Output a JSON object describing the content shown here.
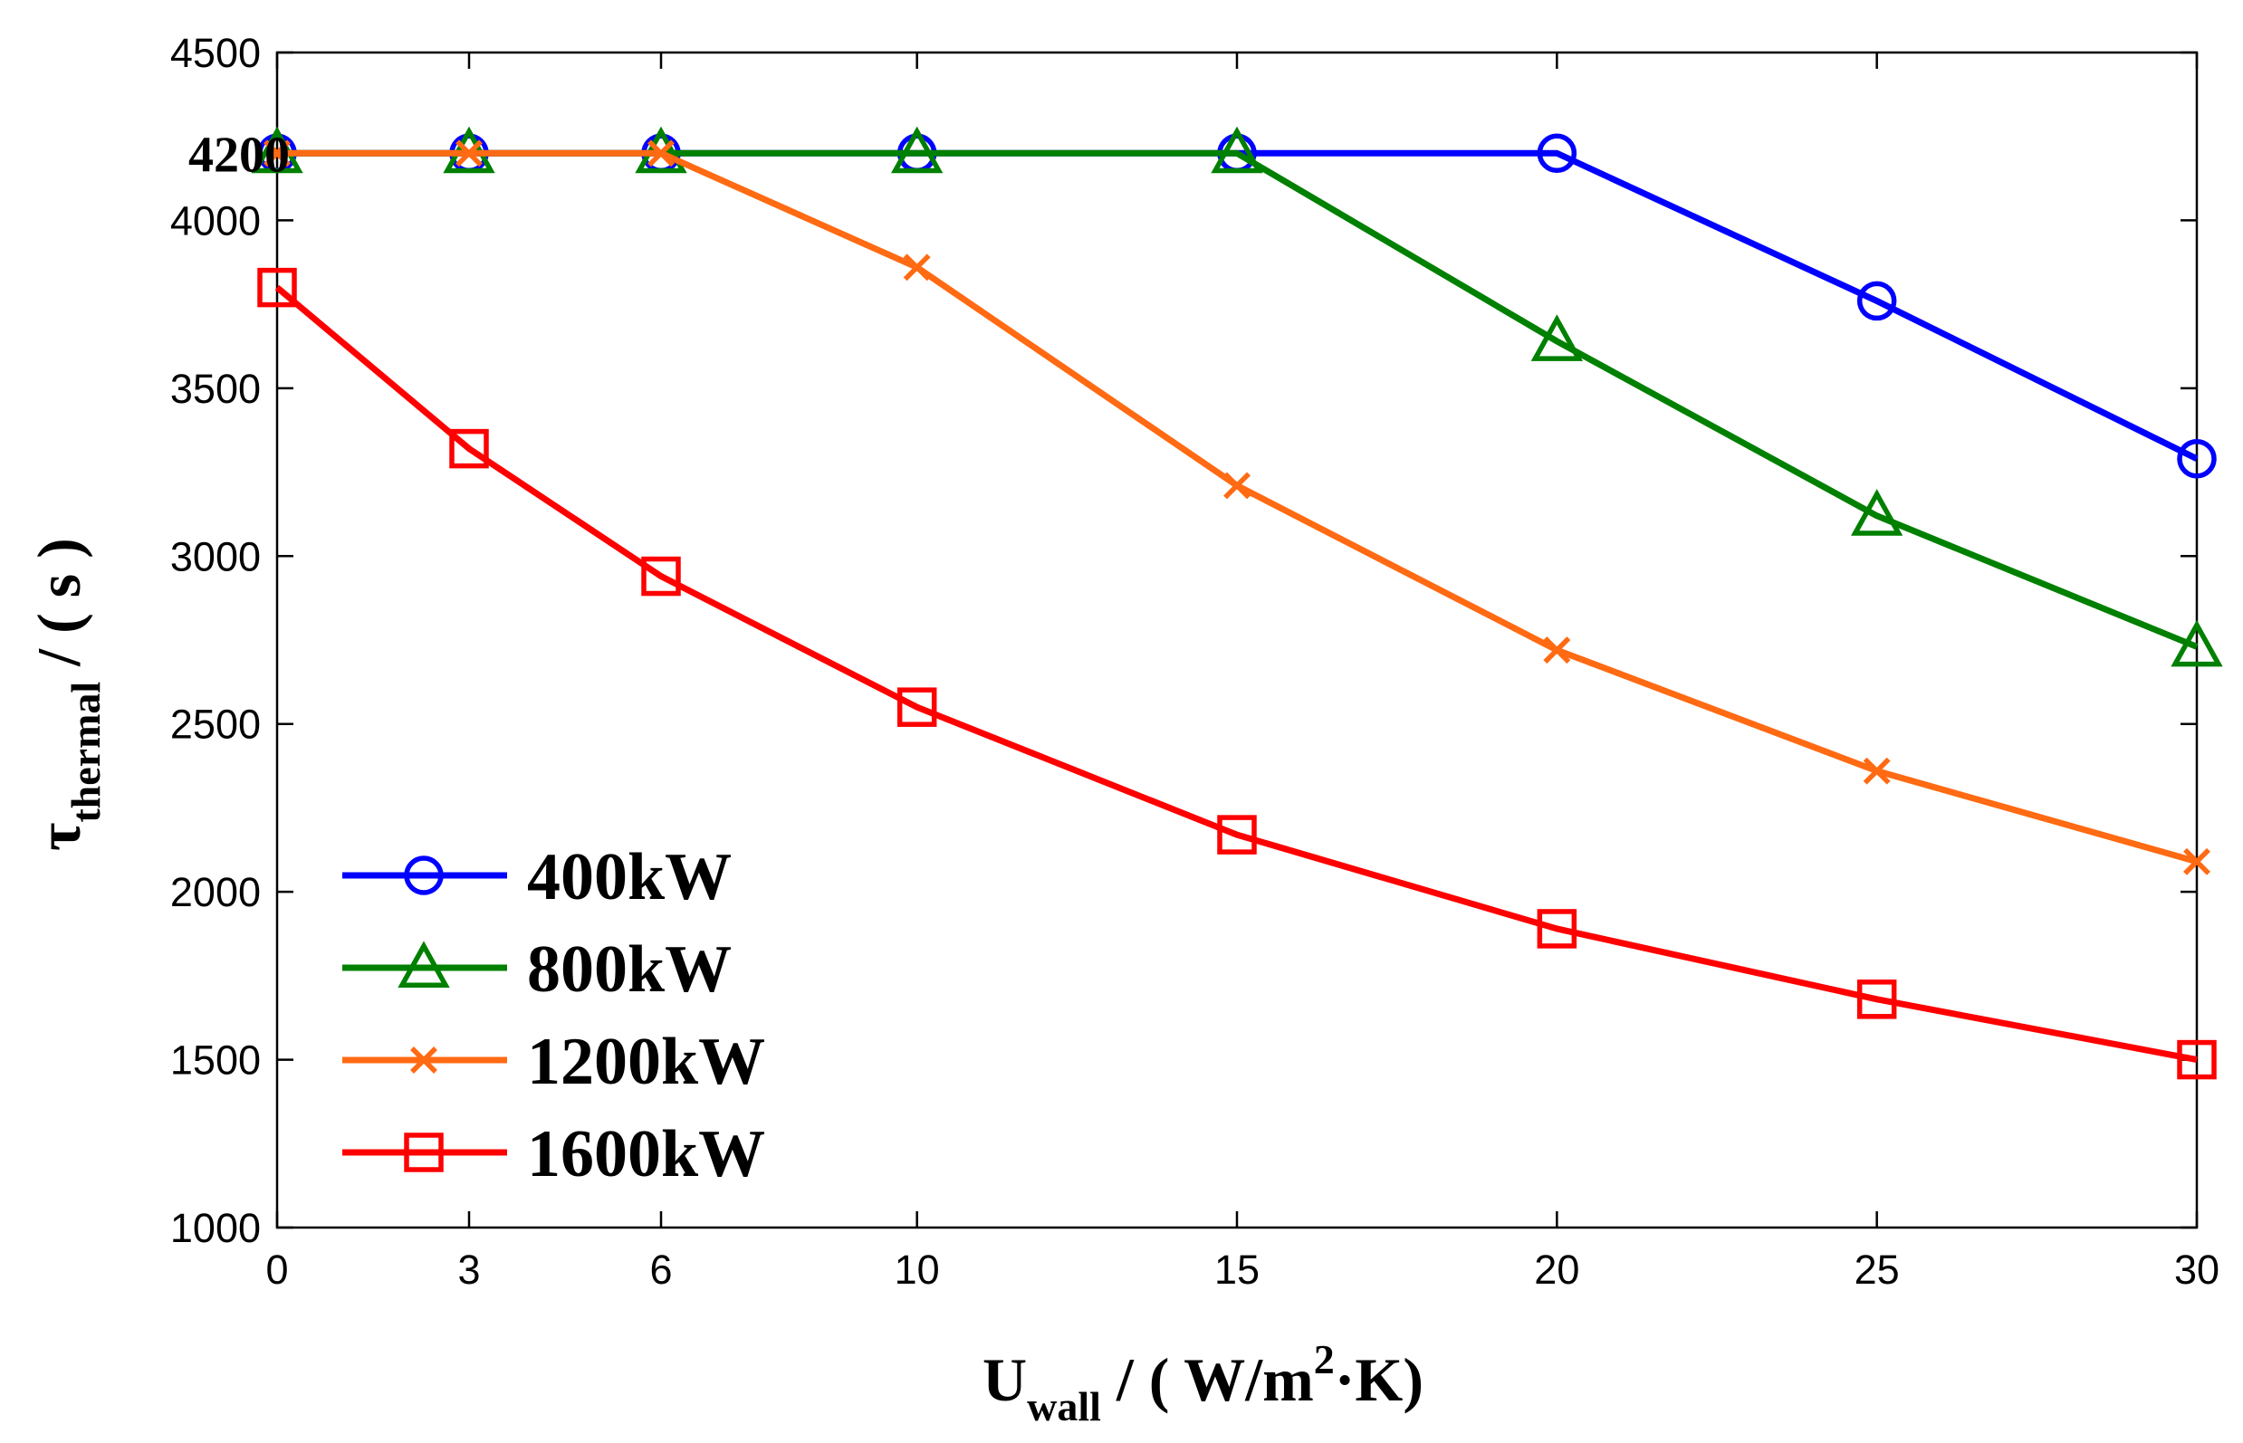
{
  "chart_data": {
    "type": "line",
    "title": "",
    "x": [
      0,
      3,
      6,
      10,
      15,
      20,
      25,
      30
    ],
    "x_tick_labels": [
      "0",
      "3",
      "6",
      "10",
      "15",
      "20",
      "25",
      "30"
    ],
    "xlim": [
      0,
      30
    ],
    "ylim": [
      1000,
      4500
    ],
    "y_ticks": [
      1000,
      1500,
      2000,
      2500,
      3000,
      3500,
      4000,
      4500
    ],
    "y_tick_labels": [
      "1000",
      "1500",
      "2000",
      "2500",
      "3000",
      "3500",
      "4000",
      "4500"
    ],
    "xlabel": {
      "main": "U",
      "sub": "wall",
      "mid": " / ( W/m",
      "sup": "2",
      "tail": "·K)"
    },
    "ylabel": {
      "main": "τ",
      "sub": "thermal",
      "tail": " / ( s )"
    },
    "grid": false,
    "legend_position": "bottom-left",
    "annotation": {
      "text": "4200",
      "y": 4200
    },
    "series": [
      {
        "name": "400kW",
        "color": "#0000ff",
        "marker": "circle",
        "values": [
          4200,
          4200,
          4200,
          4200,
          4200,
          4200,
          3760,
          3290
        ]
      },
      {
        "name": "800kW",
        "color": "#008000",
        "marker": "triangle",
        "values": [
          4200,
          4200,
          4200,
          4200,
          4200,
          3640,
          3120,
          2730
        ]
      },
      {
        "name": "1200kW",
        "color": "#ff6a13",
        "marker": "x",
        "values": [
          4200,
          4200,
          4200,
          3860,
          3210,
          2720,
          2360,
          2090
        ]
      },
      {
        "name": "1600kW",
        "color": "#ff0000",
        "marker": "square",
        "values": [
          3800,
          3320,
          2940,
          2550,
          2170,
          1890,
          1680,
          1500
        ]
      }
    ]
  }
}
